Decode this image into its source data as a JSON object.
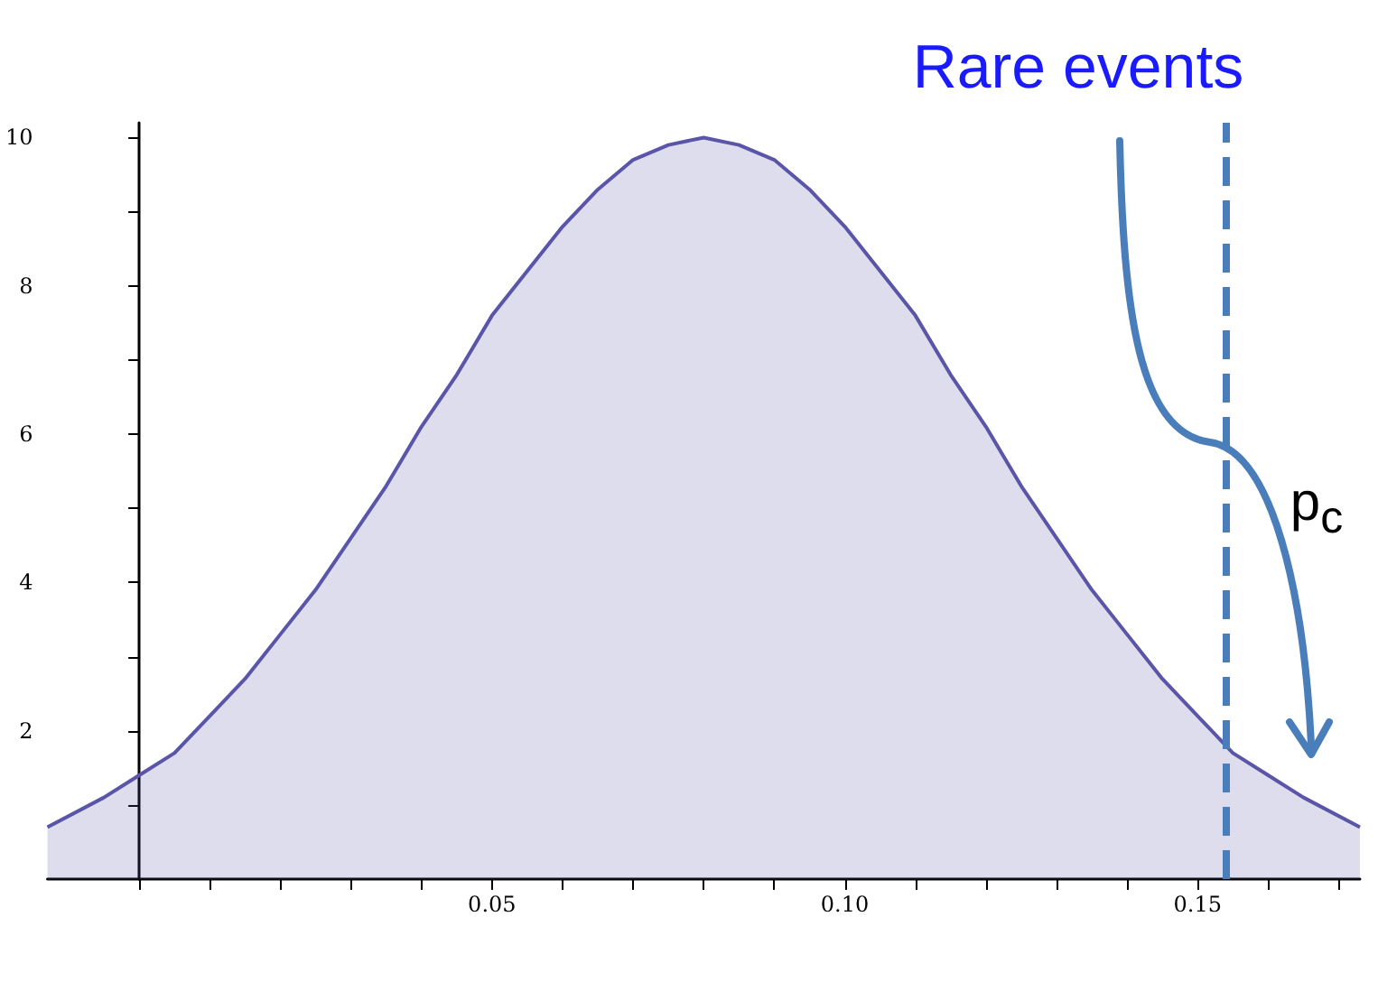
{
  "chart_data": {
    "type": "area",
    "x": [
      -0.013,
      -0.005,
      0,
      0.005,
      0.01,
      0.015,
      0.02,
      0.025,
      0.03,
      0.035,
      0.04,
      0.045,
      0.05,
      0.055,
      0.06,
      0.065,
      0.07,
      0.075,
      0.08,
      0.085,
      0.09,
      0.095,
      0.1,
      0.105,
      0.11,
      0.115,
      0.12,
      0.125,
      0.13,
      0.135,
      0.14,
      0.145,
      0.15,
      0.155,
      0.16,
      0.165,
      0.173
    ],
    "series": [
      {
        "color": "#5a55a8",
        "values": [
          0.7,
          1.1,
          1.4,
          1.7,
          2.2,
          2.7,
          3.3,
          3.9,
          4.6,
          5.3,
          6.1,
          6.8,
          7.6,
          8.2,
          8.8,
          9.3,
          9.7,
          9.9,
          10,
          9.9,
          9.7,
          9.3,
          8.8,
          8.2,
          7.6,
          6.8,
          6.1,
          5.3,
          4.6,
          3.9,
          3.3,
          2.7,
          2.2,
          1.7,
          1.4,
          1.1,
          0.7
        ]
      }
    ],
    "xlim": [
      -0.013,
      0.173
    ],
    "xticks": [
      {
        "value": 0,
        "label": null
      },
      {
        "value": 0.01,
        "label": null
      },
      {
        "value": 0.02,
        "label": null
      },
      {
        "value": 0.03,
        "label": null
      },
      {
        "value": 0.04,
        "label": null
      },
      0.05,
      {
        "value": 0.06,
        "label": null
      },
      {
        "value": 0.07,
        "label": null
      },
      {
        "value": 0.08,
        "label": null
      },
      {
        "value": 0.09,
        "label": null
      },
      {
        "value": 0.1,
        "label": "0.10"
      },
      {
        "value": 0.11,
        "label": null
      },
      {
        "value": 0.12,
        "label": null
      },
      {
        "value": 0.13,
        "label": null
      },
      {
        "value": 0.14,
        "label": null
      },
      0.15,
      {
        "value": 0.16,
        "label": null
      },
      {
        "value": 0.17,
        "label": null
      }
    ],
    "ylim": [
      0,
      10.2
    ],
    "yticks": [
      {
        "value": 1,
        "label": null
      },
      2,
      {
        "value": 3,
        "label": null
      },
      4,
      {
        "value": 5,
        "label": null
      },
      6,
      {
        "value": 7,
        "label": null
      },
      8,
      {
        "value": 9,
        "label": null
      },
      10
    ],
    "marker": "none",
    "line_style": "solid",
    "ref_lines": [
      {
        "axis": "x",
        "value": 0.154,
        "color": "#4a7ebb",
        "line_style": "dashed"
      }
    ],
    "annotations": [
      "Rare events",
      "p$_{c}$"
    ]
  }
}
